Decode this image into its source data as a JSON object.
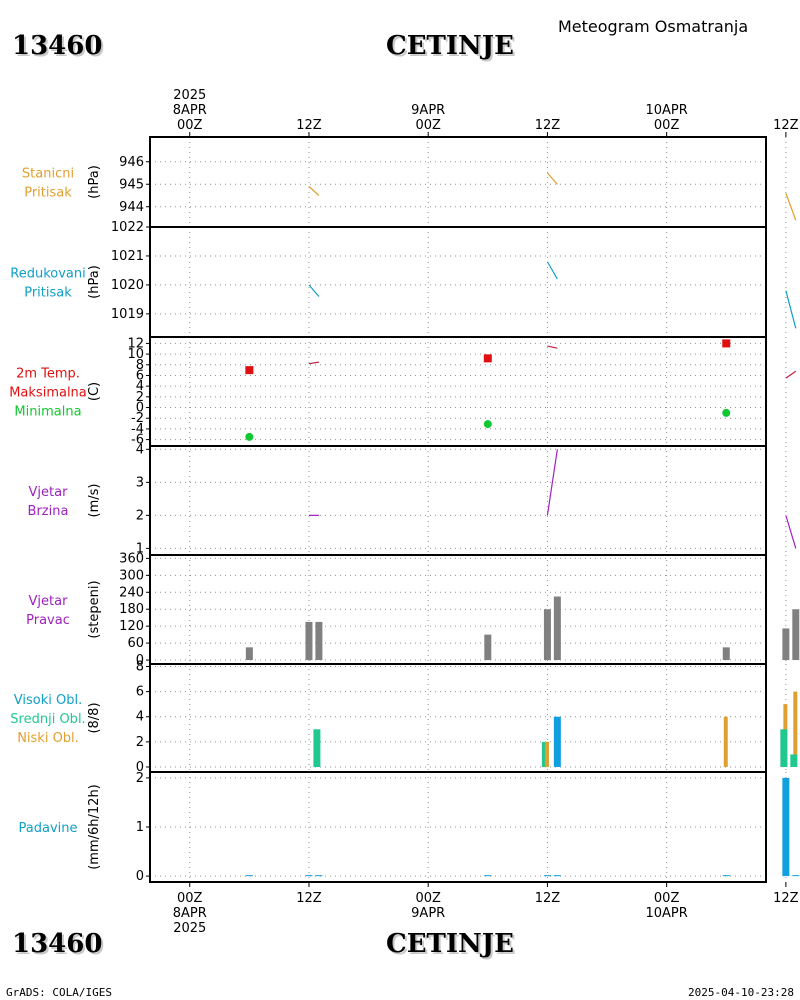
{
  "header": {
    "station_id": "13460",
    "station_name": "CETINJE",
    "meteogram_title": "Meteogram Osmatranja"
  },
  "footer": {
    "station_id": "13460",
    "station_name": "CETINJE",
    "software": "GrADS: COLA/IGES",
    "timestamp": "2025-04-10-23:28"
  },
  "time_axis": {
    "start_hour": -4,
    "end_hour": 58,
    "ticks": [
      {
        "hour": 0,
        "top": [
          "2025",
          "8APR",
          "00Z"
        ],
        "bottom": [
          "00Z",
          "8APR",
          "2025"
        ]
      },
      {
        "hour": 12,
        "top": [
          "12Z"
        ],
        "bottom": [
          "12Z"
        ]
      },
      {
        "hour": 24,
        "top": [
          "9APR",
          "00Z"
        ],
        "bottom": [
          "00Z",
          "9APR"
        ]
      },
      {
        "hour": 36,
        "top": [
          "12Z"
        ],
        "bottom": [
          "12Z"
        ]
      },
      {
        "hour": 48,
        "top": [
          "10APR",
          "00Z"
        ],
        "bottom": [
          "00Z",
          "10APR"
        ]
      },
      {
        "hour": 60,
        "top": [
          "12Z"
        ],
        "bottom": [
          "12Z"
        ]
      }
    ]
  },
  "colors": {
    "orange": "#e0a030",
    "cyan": "#10a0c8",
    "red": "#e01010",
    "green": "#10c830",
    "purple": "#a020c0",
    "gray": "#808080",
    "teal": "#20c890",
    "blue": "#10a0e0"
  },
  "chart_data": [
    {
      "id": "stanicni",
      "type": "line",
      "labels": [
        {
          "text": "Stanicni",
          "color": "#e0a030"
        },
        {
          "text": "Pritisak",
          "color": "#e0a030"
        }
      ],
      "unit": "(hPa)",
      "ylim": [
        943.1,
        947.1
      ],
      "yticks": [
        944,
        945,
        946
      ],
      "grid": true,
      "series": [
        {
          "color": "#e0a030",
          "points": [
            [
              12,
              944.9
            ],
            [
              13,
              944.5
            ]
          ]
        },
        {
          "color": "#e0a030",
          "points": [
            [
              36,
              945.5
            ],
            [
              37,
              945.0
            ]
          ]
        },
        {
          "color": "#e0a030",
          "points": [
            [
              60,
              944.6
            ],
            [
              61,
              943.4
            ]
          ]
        }
      ]
    },
    {
      "id": "redukovani",
      "type": "line",
      "labels": [
        {
          "text": "Redukovani",
          "color": "#10a0c8"
        },
        {
          "text": "Pritisak",
          "color": "#10a0c8"
        }
      ],
      "unit": "(hPa)",
      "ylim": [
        1018.2,
        1022.0
      ],
      "yticks": [
        1019,
        1020,
        1021,
        1022
      ],
      "grid": true,
      "series": [
        {
          "color": "#10a0c8",
          "points": [
            [
              12,
              1020.0
            ],
            [
              13,
              1019.6
            ]
          ]
        },
        {
          "color": "#10a0c8",
          "points": [
            [
              36,
              1020.8
            ],
            [
              37,
              1020.2
            ]
          ]
        },
        {
          "color": "#10a0c8",
          "points": [
            [
              60,
              1019.8
            ],
            [
              61,
              1018.5
            ]
          ]
        }
      ]
    },
    {
      "id": "temperatura",
      "type": "scatter",
      "labels": [
        {
          "text": "2m Temp.",
          "color": "#e01010"
        },
        {
          "text": "Maksimalna",
          "color": "#e01010"
        },
        {
          "text": "Minimalna",
          "color": "#10c830"
        }
      ],
      "unit": "(C)",
      "ylim": [
        -7.2,
        13.2
      ],
      "yticks": [
        -6,
        -4,
        -2,
        0,
        2,
        4,
        6,
        8,
        10,
        12
      ],
      "grid": true,
      "series": [
        {
          "color": "#c02040",
          "points": [
            [
              12,
              8.2
            ],
            [
              13,
              8.5
            ]
          ]
        },
        {
          "color": "#c02040",
          "points": [
            [
              36,
              11.5
            ],
            [
              37,
              11.1
            ]
          ]
        },
        {
          "color": "#c02040",
          "points": [
            [
              60,
              5.5
            ],
            [
              61,
              6.8
            ]
          ]
        }
      ],
      "max_points": [
        [
          6,
          7.0
        ],
        [
          30,
          9.2
        ],
        [
          54,
          12.0
        ]
      ],
      "min_points": [
        [
          6,
          -5.5
        ],
        [
          30,
          -3.1
        ],
        [
          54,
          -1.0
        ]
      ]
    },
    {
      "id": "brzina",
      "type": "line",
      "labels": [
        {
          "text": "Vjetar",
          "color": "#a020c0"
        },
        {
          "text": "Brzina",
          "color": "#a020c0"
        }
      ],
      "unit": "(m/s)",
      "ylim": [
        0.8,
        4.1
      ],
      "yticks": [
        1,
        2,
        3,
        4
      ],
      "grid": true,
      "series": [
        {
          "color": "#a020c0",
          "points": [
            [
              12,
              2.0
            ],
            [
              13,
              2.0
            ]
          ]
        },
        {
          "color": "#a020c0",
          "points": [
            [
              36,
              2.0
            ],
            [
              37,
              4.0
            ]
          ]
        },
        {
          "color": "#a020c0",
          "points": [
            [
              60,
              2.0
            ],
            [
              61,
              1.0
            ]
          ]
        }
      ]
    },
    {
      "id": "pravac",
      "type": "bar",
      "labels": [
        {
          "text": "Vjetar",
          "color": "#a020c0"
        },
        {
          "text": "Pravac",
          "color": "#a020c0"
        }
      ],
      "unit": "(stepeni)",
      "ylim": [
        -14,
        372
      ],
      "yticks": [
        0,
        60,
        120,
        180,
        240,
        300,
        360
      ],
      "grid": true,
      "bars": [
        {
          "x": 6,
          "value": 45,
          "color": "#808080"
        },
        {
          "x": 12,
          "value": 135,
          "color": "#808080"
        },
        {
          "x": 13,
          "value": 135,
          "color": "#808080"
        },
        {
          "x": 30,
          "value": 90,
          "color": "#808080"
        },
        {
          "x": 36,
          "value": 180,
          "color": "#808080"
        },
        {
          "x": 37,
          "value": 225,
          "color": "#808080"
        },
        {
          "x": 54,
          "value": 45,
          "color": "#808080"
        },
        {
          "x": 60,
          "value": 112,
          "color": "#808080"
        },
        {
          "x": 61,
          "value": 180,
          "color": "#808080"
        }
      ]
    },
    {
      "id": "oblaci",
      "type": "bar",
      "labels": [
        {
          "text": "Visoki Obl.",
          "color": "#10a0c8"
        },
        {
          "text": "Srednji Obl.",
          "color": "#20c890"
        },
        {
          "text": "Niski Obl.",
          "color": "#e0a030"
        }
      ],
      "unit": "(8/8)",
      "ylim": [
        -0.4,
        8.2
      ],
      "yticks": [
        0,
        2,
        4,
        6,
        8
      ],
      "grid": true,
      "bars": [
        {
          "x": 13,
          "value": 3,
          "color": "#20c890"
        },
        {
          "x": 36,
          "value": 2,
          "color": "#20c890"
        },
        {
          "x": 36,
          "value": 2,
          "color": "#e0a030",
          "offset": 0
        },
        {
          "x": 37,
          "value": 4,
          "color": "#10a0e0"
        },
        {
          "x": 54,
          "value": 4,
          "color": "#e0a030"
        },
        {
          "x": 60,
          "value": 5,
          "color": "#e0a030"
        },
        {
          "x": 60,
          "value": 3,
          "color": "#20c890"
        },
        {
          "x": 61,
          "value": 6,
          "color": "#e0a030"
        },
        {
          "x": 61,
          "value": 1,
          "color": "#20c890"
        }
      ]
    },
    {
      "id": "padavine",
      "type": "bar",
      "labels": [
        {
          "text": "Padavine",
          "color": "#10a0c8"
        }
      ],
      "unit": "(mm/6h/12h)",
      "ylim": [
        -0.12,
        2.12
      ],
      "yticks": [
        0,
        1,
        2
      ],
      "grid": true,
      "bars": [
        {
          "x": 6,
          "value": 0.02,
          "color": "#10a0e0"
        },
        {
          "x": 12,
          "value": 0.02,
          "color": "#10a0e0"
        },
        {
          "x": 13,
          "value": 0.02,
          "color": "#10a0e0"
        },
        {
          "x": 30,
          "value": 0.02,
          "color": "#10a0e0"
        },
        {
          "x": 36,
          "value": 0.02,
          "color": "#10a0e0"
        },
        {
          "x": 37,
          "value": 0.02,
          "color": "#10a0e0"
        },
        {
          "x": 54,
          "value": 0.02,
          "color": "#10a0e0"
        },
        {
          "x": 60,
          "value": 2.0,
          "color": "#10a0e0"
        },
        {
          "x": 61,
          "value": 0.02,
          "color": "#10a0e0"
        }
      ]
    }
  ]
}
